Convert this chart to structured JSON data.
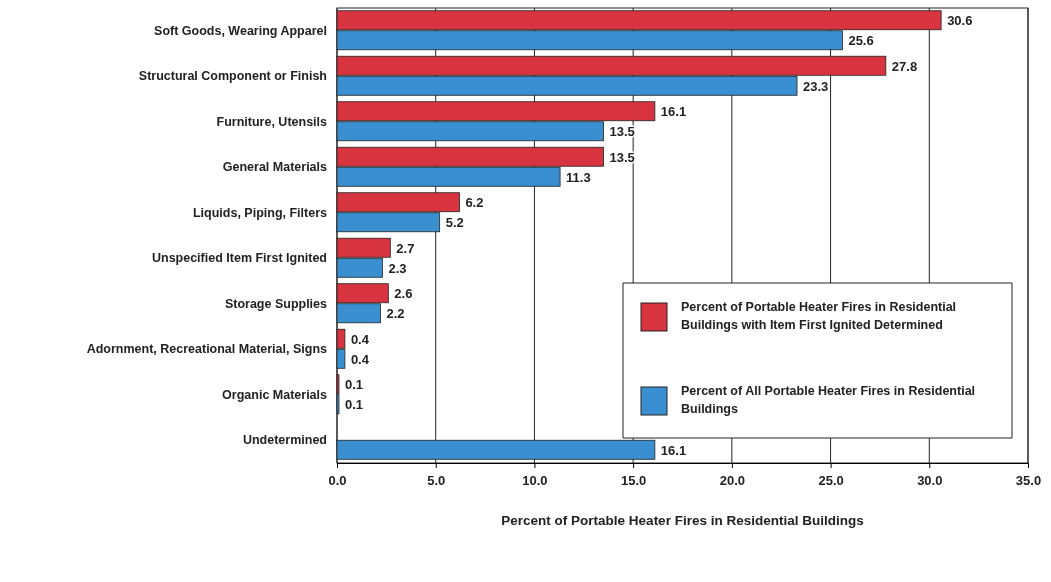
{
  "chart_data": {
    "type": "bar",
    "orientation": "horizontal",
    "xlabel": "Percent of Portable Heater Fires in Residential Buildings",
    "categories": [
      "Soft Goods, Wearing Apparel",
      "Structural Component or Finish",
      "Furniture, Utensils",
      "General Materials",
      "Liquids, Piping, Filters",
      "Unspecified Item First Ignited",
      "Storage Supplies",
      "Adornment, Recreational Material, Signs",
      "Organic Materials",
      "Undetermined"
    ],
    "series": [
      {
        "name": "Percent of Portable Heater Fires in Residential Buildings with Item First Ignited Determined",
        "color": "#d8343f",
        "values": [
          30.6,
          27.8,
          16.1,
          13.5,
          6.2,
          2.7,
          2.6,
          0.4,
          0.1,
          null
        ]
      },
      {
        "name": "Percent of All Portable Heater Fires in Residential Buildings",
        "color": "#3a8fd0",
        "values": [
          25.6,
          23.3,
          13.5,
          11.3,
          5.2,
          2.3,
          2.2,
          0.4,
          0.1,
          16.1
        ]
      }
    ],
    "xlim": [
      0,
      35
    ],
    "xticks": [
      {
        "value": 0,
        "label": "0.0"
      },
      {
        "value": 5,
        "label": "5.0"
      },
      {
        "value": 10,
        "label": "10.0"
      },
      {
        "value": 15,
        "label": "15.0"
      },
      {
        "value": 20,
        "label": "20.0"
      },
      {
        "value": 25,
        "label": "25.0"
      },
      {
        "value": 30,
        "label": "30.0"
      },
      {
        "value": 35,
        "label": "35.0"
      }
    ],
    "grid": "x",
    "data_labels": true,
    "legend": "bottom right"
  }
}
